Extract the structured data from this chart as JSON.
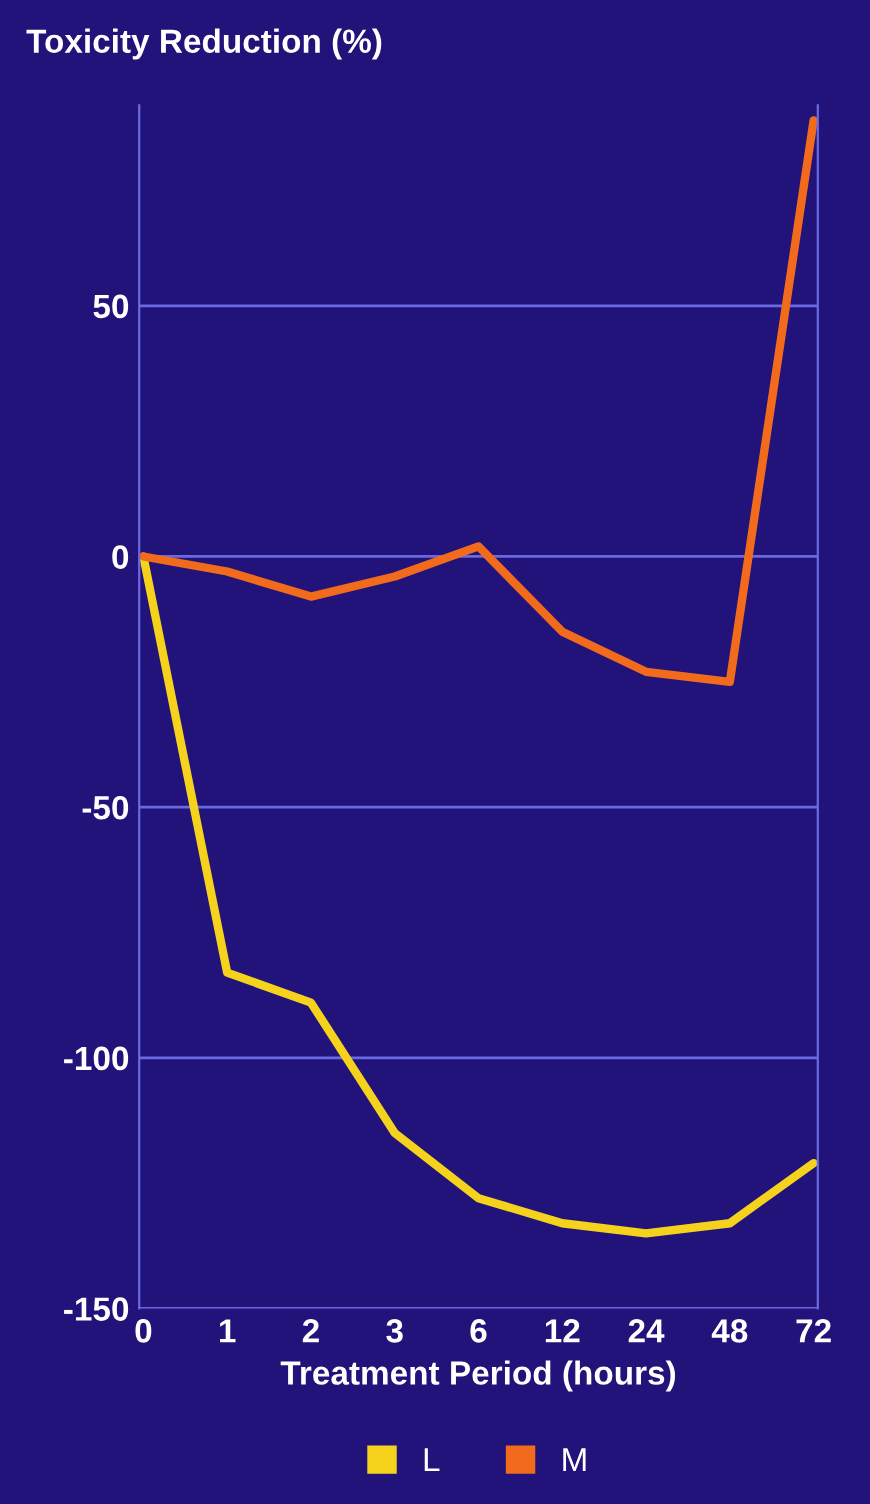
{
  "chart_data": {
    "type": "line",
    "ylabel": "Toxicity Reduction (%)",
    "xlabel": "Treatment Period (hours)",
    "categories": [
      "0",
      "1",
      "2",
      "3",
      "6",
      "12",
      "24",
      "48",
      "72"
    ],
    "series": [
      {
        "name": "L",
        "color": "#f5d31c",
        "values": [
          0,
          -83,
          -89,
          -115,
          -128,
          -133,
          -135,
          -133,
          -121
        ]
      },
      {
        "name": "M",
        "color": "#f26b1d",
        "values": [
          0,
          -3,
          -8,
          -4,
          2,
          -15,
          -23,
          -25,
          87
        ]
      }
    ],
    "ylim": [
      -150,
      90
    ],
    "yticks": [
      -150,
      -100,
      -50,
      0,
      50
    ],
    "grid": "y",
    "legend": "bottom",
    "marker": "none",
    "line_style": "solid"
  }
}
